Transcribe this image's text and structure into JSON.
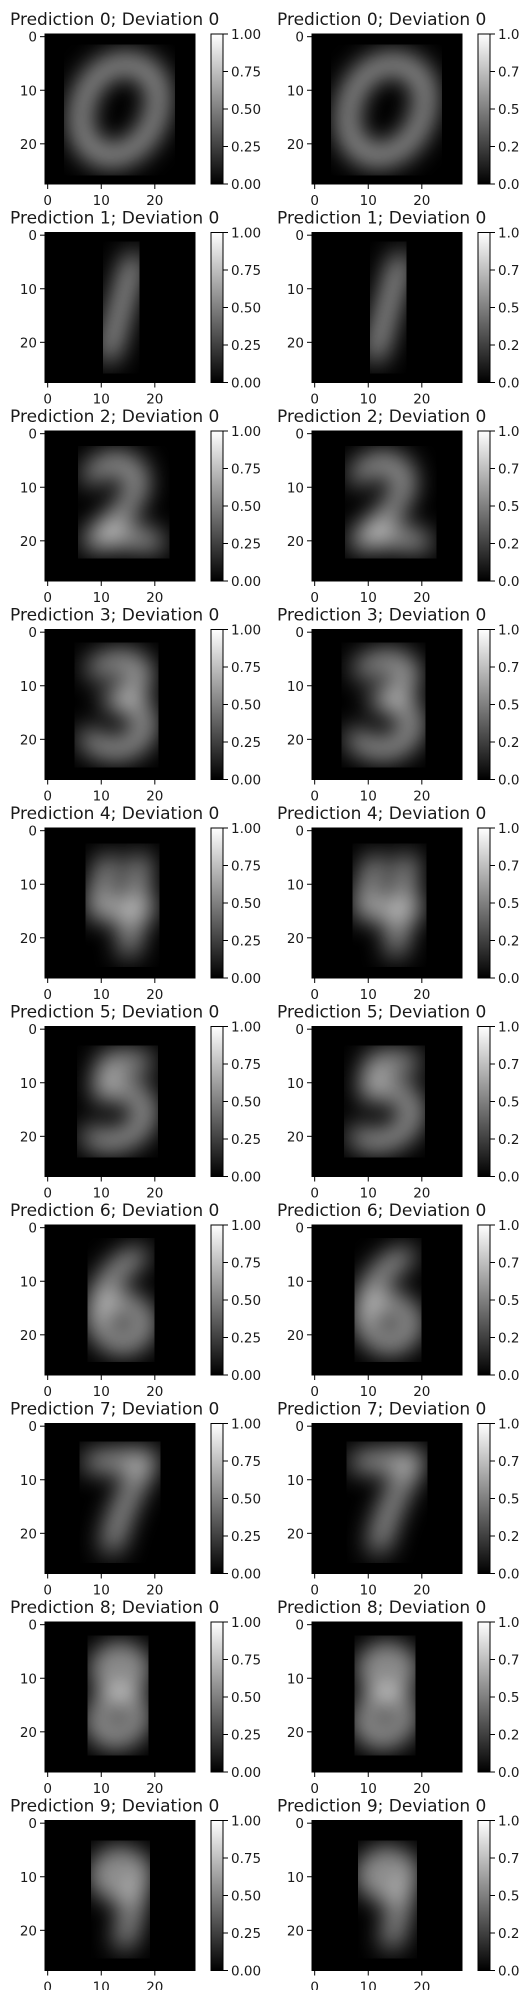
{
  "chart_data": {
    "type": "heatmap",
    "colormap": "gray",
    "layout": "10 rows x 2 columns",
    "x_ticks": [
      0,
      10,
      20
    ],
    "y_ticks": [
      0,
      10,
      20
    ],
    "colorbar_ticks": [
      "0.00",
      "0.25",
      "0.50",
      "0.75",
      "1.00"
    ],
    "colorbar_range": [
      0,
      1
    ],
    "image_size": [
      28,
      28
    ],
    "panels": [
      {
        "title": "Prediction 0; Deviation 0",
        "prediction": 0,
        "deviation": 0
      },
      {
        "title": "Prediction 0; Deviation 0",
        "prediction": 0,
        "deviation": 0
      },
      {
        "title": "Prediction 1; Deviation 0",
        "prediction": 1,
        "deviation": 0
      },
      {
        "title": "Prediction 1; Deviation 0",
        "prediction": 1,
        "deviation": 0
      },
      {
        "title": "Prediction 2; Deviation 0",
        "prediction": 2,
        "deviation": 0
      },
      {
        "title": "Prediction 2; Deviation 0",
        "prediction": 2,
        "deviation": 0
      },
      {
        "title": "Prediction 3; Deviation 0",
        "prediction": 3,
        "deviation": 0
      },
      {
        "title": "Prediction 3; Deviation 0",
        "prediction": 3,
        "deviation": 0
      },
      {
        "title": "Prediction 4; Deviation 0",
        "prediction": 4,
        "deviation": 0
      },
      {
        "title": "Prediction 4; Deviation 0",
        "prediction": 4,
        "deviation": 0
      },
      {
        "title": "Prediction 5; Deviation 0",
        "prediction": 5,
        "deviation": 0
      },
      {
        "title": "Prediction 5; Deviation 0",
        "prediction": 5,
        "deviation": 0
      },
      {
        "title": "Prediction 6; Deviation 0",
        "prediction": 6,
        "deviation": 0
      },
      {
        "title": "Prediction 6; Deviation 0",
        "prediction": 6,
        "deviation": 0
      },
      {
        "title": "Prediction 7; Deviation 0",
        "prediction": 7,
        "deviation": 0
      },
      {
        "title": "Prediction 7; Deviation 0",
        "prediction": 7,
        "deviation": 0
      },
      {
        "title": "Prediction 8; Deviation 0",
        "prediction": 8,
        "deviation": 0
      },
      {
        "title": "Prediction 8; Deviation 0",
        "prediction": 8,
        "deviation": 0
      },
      {
        "title": "Prediction 9; Deviation 0",
        "prediction": 9,
        "deviation": 0
      },
      {
        "title": "Prediction 9; Deviation 0",
        "prediction": 9,
        "deviation": 0
      }
    ]
  }
}
